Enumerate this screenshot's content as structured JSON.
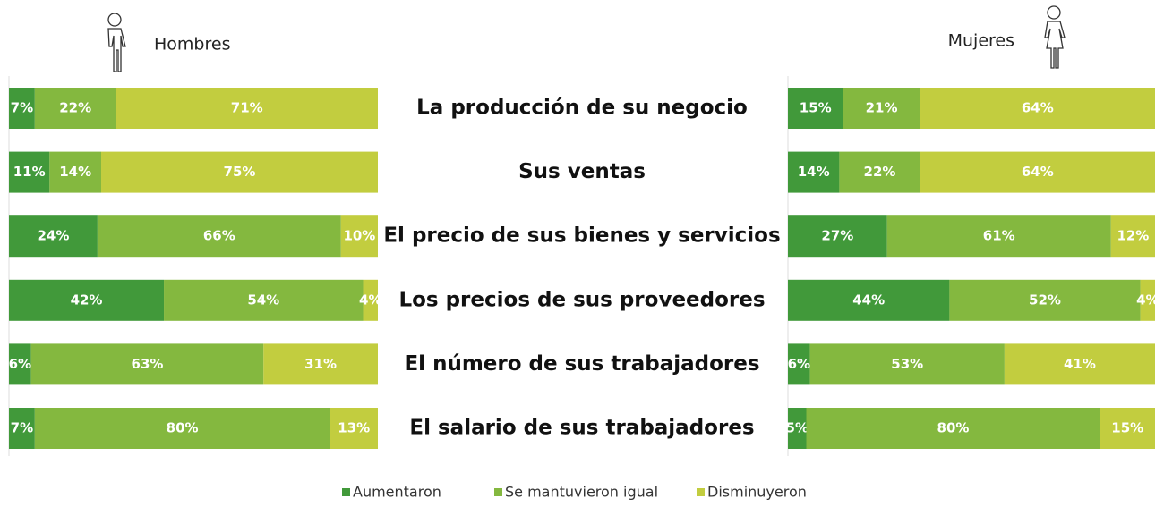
{
  "chart_data": {
    "type": "bar",
    "orientation": "horizontal",
    "stacked": true,
    "categories": [
      "La producción de su negocio",
      "Sus ventas",
      "El precio de sus bienes y servicios",
      "Los precios de sus proveedores",
      "El número de sus trabajadores",
      "El salario de sus trabajadores"
    ],
    "series": [
      {
        "name": "Aumentaron",
        "color": "#41993a"
      },
      {
        "name": "Se mantuvieron igual",
        "color": "#84b83f"
      },
      {
        "name": "Disminuyeron",
        "color": "#c2cd3f"
      }
    ],
    "xlim": [
      0,
      100
    ],
    "panels": [
      {
        "title": "Hombres",
        "values": [
          [
            7,
            11,
            24,
            42,
            6,
            7
          ],
          [
            22,
            14,
            66,
            54,
            63,
            80
          ],
          [
            71,
            75,
            10,
            4,
            31,
            13
          ]
        ],
        "value_labels": [
          [
            "7%",
            "11%",
            "24%",
            "42%",
            "6%",
            "7%"
          ],
          [
            "22%",
            "14%",
            "66%",
            "54%",
            "63%",
            "80%"
          ],
          [
            "71%",
            "75%",
            "10%",
            "4%",
            "31%",
            "13%"
          ]
        ]
      },
      {
        "title": "Mujeres",
        "values": [
          [
            15,
            14,
            27,
            44,
            6,
            5
          ],
          [
            21,
            22,
            61,
            52,
            53,
            80
          ],
          [
            64,
            64,
            12,
            4,
            41,
            15
          ]
        ],
        "value_labels": [
          [
            "15%",
            "14%",
            "27%",
            "44%",
            "6%",
            "5%"
          ],
          [
            "21%",
            "22%",
            "61%",
            "52%",
            "53%",
            "80%"
          ],
          [
            "64%",
            "64%",
            "12%",
            "4%",
            "41%",
            "15%"
          ]
        ]
      }
    ]
  }
}
